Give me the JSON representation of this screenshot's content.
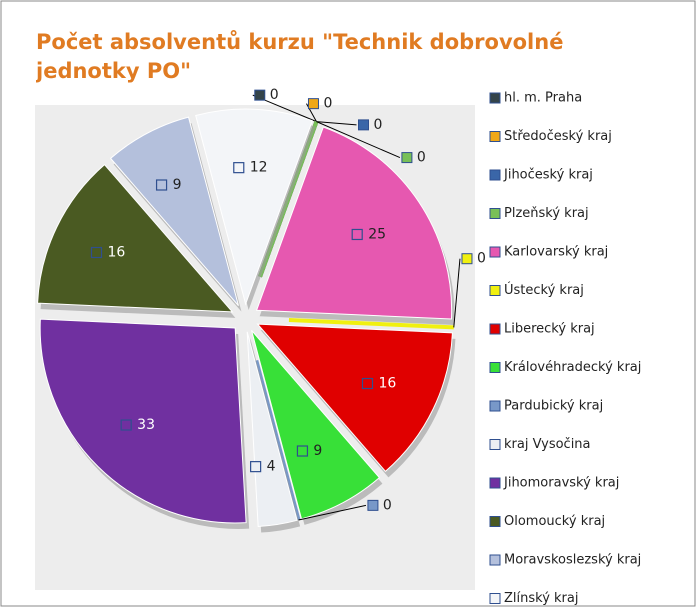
{
  "chart_data": {
    "type": "pie",
    "title": "Počet absolventů kurzu \"Technik dobrovolné jednotky PO\"",
    "categories": [
      "hl. m. Praha",
      "Středočeský kraj",
      "Jihočeský kraj",
      "Plzeňský kraj",
      "Karlovarský kraj",
      "Ústecký kraj",
      "Liberecký kraj",
      "Královéhradecký kraj",
      "Pardubický kraj",
      "kraj Vysočina",
      "Jihomoravský kraj",
      "Olomoucký kraj",
      "Moravskoslezský kraj",
      "Zlínský kraj"
    ],
    "values": [
      0,
      0,
      0,
      0,
      25,
      0,
      16,
      9,
      0,
      4,
      33,
      16,
      9,
      12
    ],
    "colors": [
      "#34444a",
      "#f0a818",
      "#3a66a8",
      "#78c058",
      "#e658b0",
      "#f0f010",
      "#e00000",
      "#38e038",
      "#7898c8",
      "#eceff3",
      "#7030a0",
      "#4a5a22",
      "#b4c0dc",
      "#f3f5f8"
    ],
    "legend": "right"
  }
}
